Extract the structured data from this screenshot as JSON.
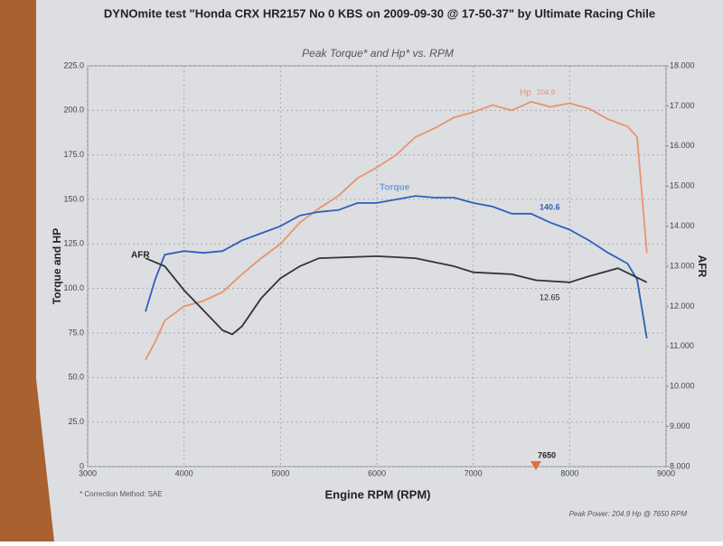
{
  "chart_data": {
    "type": "line",
    "title": "DYNOmite test \"Honda CRX HR2157 No 0 KBS on 2009-09-30 @ 17-50-37\" by Ultimate Racing Chile",
    "subtitle": "Peak Torque* and Hp* vs. RPM",
    "x_label": "Engine RPM (RPM)",
    "y_label": "Torque and HP",
    "y2_label": "AFR",
    "footnote": "* Correction Method: SAE",
    "peak_note": "Peak Power: 204.9 Hp @ 7650 RPM",
    "xlim": [
      3000,
      9000
    ],
    "xticks": [
      3000,
      4000,
      5000,
      6000,
      7000,
      8000,
      9000
    ],
    "ylim": [
      0,
      225
    ],
    "yticks": [
      0,
      {
        "value": 25,
        "label": "25.0"
      },
      {
        "value": 50,
        "label": "50.0"
      },
      {
        "value": 75,
        "label": "75.0"
      },
      {
        "value": 100,
        "label": "100.0"
      },
      {
        "value": 125,
        "label": "125.0"
      },
      {
        "value": 150,
        "label": "150.0"
      },
      {
        "value": 175,
        "label": "175.0"
      },
      {
        "value": 200,
        "label": "200.0"
      },
      {
        "value": 225,
        "label": "225.0"
      }
    ],
    "y2lim": [
      8,
      18
    ],
    "y2ticks": [
      {
        "value": 8,
        "label": "8.000"
      },
      {
        "value": 9,
        "label": "9.000"
      },
      {
        "value": 10,
        "label": "10.000"
      },
      {
        "value": 11,
        "label": "11.000"
      },
      {
        "value": 12,
        "label": "12.000"
      },
      {
        "value": 13,
        "label": "13.000"
      },
      {
        "value": 14,
        "label": "14.000"
      },
      {
        "value": 15,
        "label": "15.000"
      },
      {
        "value": 16,
        "label": "16.000"
      },
      {
        "value": 17,
        "label": "17.000"
      },
      {
        "value": 18,
        "label": "18.000"
      }
    ],
    "grid": true,
    "series": [
      {
        "name": "Hp",
        "color": "#e8946c",
        "x": [
          3600,
          3700,
          3800,
          4000,
          4200,
          4400,
          4600,
          4800,
          5000,
          5200,
          5400,
          5600,
          5800,
          6000,
          6200,
          6400,
          6600,
          6800,
          7000,
          7200,
          7400,
          7600,
          7800,
          8000,
          8200,
          8400,
          8600,
          8700,
          8800
        ],
        "values": [
          60,
          70,
          82,
          90,
          93,
          98,
          108,
          117,
          125,
          137,
          145,
          152,
          162,
          168,
          175,
          185,
          190,
          196,
          199,
          203,
          200,
          204.9,
          202,
          204,
          201,
          195,
          191,
          185,
          120
        ]
      },
      {
        "name": "Torque",
        "color": "#2f5fb8",
        "x": [
          3600,
          3700,
          3800,
          4000,
          4200,
          4400,
          4600,
          4800,
          5000,
          5200,
          5400,
          5600,
          5800,
          6000,
          6200,
          6400,
          6600,
          6800,
          7000,
          7200,
          7400,
          7600,
          7800,
          8000,
          8200,
          8400,
          8600,
          8700,
          8800
        ],
        "values": [
          87,
          105,
          119,
          121,
          120,
          121,
          127,
          131,
          135,
          141,
          143,
          144,
          148,
          148,
          150,
          152,
          151,
          151,
          148,
          146,
          142,
          142,
          137,
          133,
          127,
          120,
          114,
          105,
          72
        ]
      },
      {
        "name": "AFR",
        "color": "#333333",
        "axis": "y2",
        "x": [
          3600,
          3800,
          4000,
          4200,
          4400,
          4500,
          4600,
          4800,
          5000,
          5200,
          5400,
          6000,
          6400,
          6800,
          7000,
          7400,
          7650,
          8000,
          8200,
          8500,
          8800
        ],
        "values": [
          13.2,
          13.0,
          12.4,
          11.9,
          11.4,
          11.3,
          11.5,
          12.2,
          12.7,
          13.0,
          13.2,
          13.25,
          13.2,
          13.0,
          12.85,
          12.8,
          12.65,
          12.6,
          12.75,
          12.95,
          12.6
        ]
      }
    ],
    "annotations": {
      "hp_peak": 204.9,
      "torque_value": 140.6,
      "afr_value": 12.65,
      "peak_rpm": 7650
    }
  }
}
